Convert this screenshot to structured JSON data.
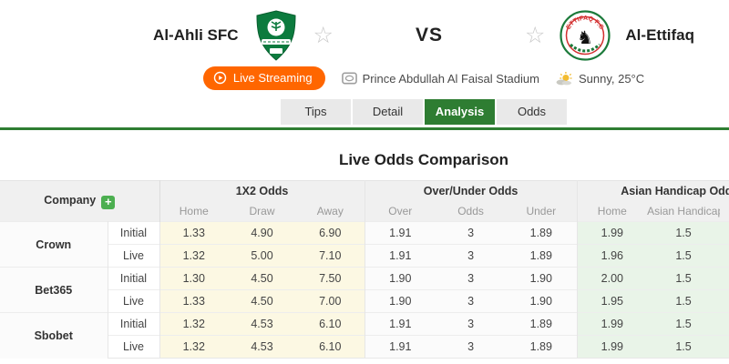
{
  "header": {
    "home_team": "Al-Ahli SFC",
    "away_team": "Al-Ettifaq",
    "vs_label": "VS",
    "live_streaming_label": "Live Streaming",
    "stadium_name": "Prince Abdullah Al Faisal Stadium",
    "weather_text": "Sunny, 25°C"
  },
  "tabs": {
    "items": [
      "Tips",
      "Detail",
      "Analysis",
      "Odds"
    ],
    "active": "Analysis"
  },
  "main": {
    "title": "Live Odds Comparison",
    "table": {
      "company_header": "Company",
      "add_company_label": "+",
      "row_types": [
        "Initial",
        "Live"
      ],
      "groups": [
        {
          "label": "1X2 Odds",
          "columns": [
            "Home",
            "Draw",
            "Away"
          ]
        },
        {
          "label": "Over/Under Odds",
          "columns": [
            "Over",
            "Odds",
            "Under"
          ]
        },
        {
          "label": "Asian Handicap Odds",
          "columns": [
            "Home",
            "Asian Handicap"
          ]
        }
      ],
      "companies": [
        {
          "name": "Crown",
          "odds": {
            "Initial": {
              "x12": [
                "1.33",
                "4.90",
                "6.90"
              ],
              "over_under": [
                "1.91",
                "3",
                "1.89"
              ],
              "asian_handicap": [
                "1.99",
                "1.5"
              ]
            },
            "Live": {
              "x12": [
                "1.32",
                "5.00",
                "7.10"
              ],
              "over_under": [
                "1.91",
                "3",
                "1.89"
              ],
              "asian_handicap": [
                "1.96",
                "1.5"
              ]
            }
          }
        },
        {
          "name": "Bet365",
          "odds": {
            "Initial": {
              "x12": [
                "1.30",
                "4.50",
                "7.50"
              ],
              "over_under": [
                "1.90",
                "3",
                "1.90"
              ],
              "asian_handicap": [
                "2.00",
                "1.5"
              ]
            },
            "Live": {
              "x12": [
                "1.33",
                "4.50",
                "7.00"
              ],
              "over_under": [
                "1.90",
                "3",
                "1.90"
              ],
              "asian_handicap": [
                "1.95",
                "1.5"
              ]
            }
          }
        },
        {
          "name": "Sbobet",
          "odds": {
            "Initial": {
              "x12": [
                "1.32",
                "4.53",
                "6.10"
              ],
              "over_under": [
                "1.91",
                "3",
                "1.89"
              ],
              "asian_handicap": [
                "1.99",
                "1.5"
              ]
            },
            "Live": {
              "x12": [
                "1.32",
                "4.53",
                "6.10"
              ],
              "over_under": [
                "1.91",
                "3",
                "1.89"
              ],
              "asian_handicap": [
                "1.99",
                "1.5"
              ]
            }
          }
        }
      ]
    }
  },
  "colors": {
    "accent_green": "#2e7d32",
    "live_button_orange": "#ff6600",
    "odds_1x2_bg": "#fcf8e3",
    "asian_handicap_bg": "#e9f4e8",
    "home_logo_green": "#0c7b3e",
    "away_logo_green": "#1b7a3a",
    "away_logo_red": "#d32f2f"
  }
}
